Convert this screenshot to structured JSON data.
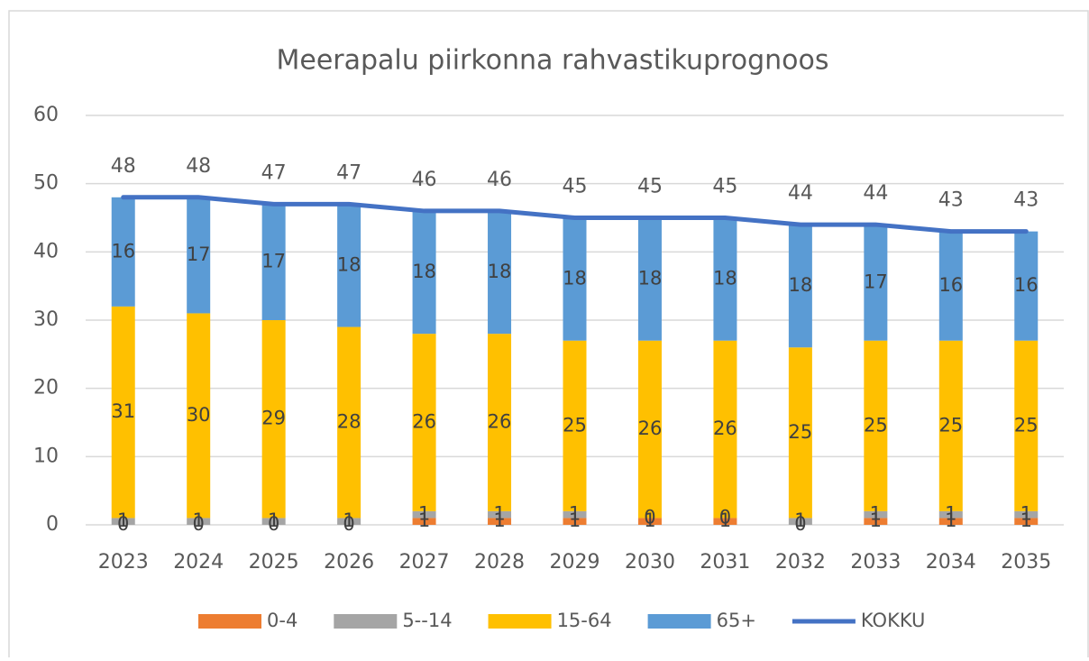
{
  "chart_data": {
    "type": "bar",
    "stacked": true,
    "title": "Meerapalu piirkonna rahvastikuprognoos",
    "categories": [
      "2023",
      "2024",
      "2025",
      "2026",
      "2027",
      "2028",
      "2029",
      "2030",
      "2031",
      "2032",
      "2033",
      "2034",
      "2035"
    ],
    "series": [
      {
        "name": "0-4",
        "type": "bar",
        "color": "#ed7d31",
        "values": [
          0,
          0,
          0,
          0,
          1,
          1,
          1,
          1,
          1,
          0,
          1,
          1,
          1
        ]
      },
      {
        "name": "5--14",
        "type": "bar",
        "color": "#a5a5a5",
        "values": [
          1,
          1,
          1,
          1,
          1,
          1,
          1,
          0,
          0,
          1,
          1,
          1,
          1
        ]
      },
      {
        "name": "15-64",
        "type": "bar",
        "color": "#ffc000",
        "values": [
          31,
          30,
          29,
          28,
          26,
          26,
          25,
          26,
          26,
          25,
          25,
          25,
          25
        ]
      },
      {
        "name": "65+",
        "type": "bar",
        "color": "#5b9bd5",
        "values": [
          16,
          17,
          17,
          18,
          18,
          18,
          18,
          18,
          18,
          18,
          17,
          16,
          16
        ]
      },
      {
        "name": "KOKKU",
        "type": "line",
        "color": "#4472c4",
        "values": [
          48,
          48,
          47,
          47,
          46,
          46,
          45,
          45,
          45,
          44,
          44,
          43,
          43
        ]
      }
    ],
    "ylim": [
      0,
      60
    ],
    "yticks": [
      0,
      10,
      20,
      30,
      40,
      50,
      60
    ],
    "grid": true,
    "legend": "bottom"
  }
}
